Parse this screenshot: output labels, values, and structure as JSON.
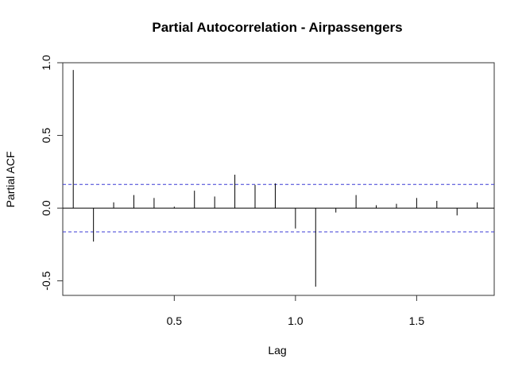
{
  "chart_data": {
    "type": "bar",
    "title": "Partial Autocorrelation - Airpassengers",
    "xlabel": "Lag",
    "ylabel": "Partial ACF",
    "xlim": [
      0.04,
      1.82
    ],
    "ylim": [
      -0.6,
      1.0
    ],
    "xticks": [
      "0.5",
      "1.0",
      "1.5"
    ],
    "xtick_values": [
      0.5,
      1.0,
      1.5
    ],
    "yticks": [
      "-0.5",
      "0.0",
      "0.5",
      "1.0"
    ],
    "ytick_values": [
      -0.5,
      0.0,
      0.5,
      1.0
    ],
    "confidence_band": [
      0.163,
      -0.163
    ],
    "confidence_color": "#3b3bd6",
    "bar_color": "#000000",
    "x": [
      0.0833,
      0.1667,
      0.25,
      0.3333,
      0.4167,
      0.5,
      0.5833,
      0.6667,
      0.75,
      0.8333,
      0.9167,
      1.0,
      1.0833,
      1.1667,
      1.25,
      1.3333,
      1.4167,
      1.5,
      1.5833,
      1.6667,
      1.75
    ],
    "values": [
      0.95,
      -0.23,
      0.04,
      0.09,
      0.07,
      0.01,
      0.12,
      0.08,
      0.23,
      0.16,
      0.17,
      -0.14,
      -0.54,
      -0.03,
      0.09,
      0.02,
      0.03,
      0.07,
      0.05,
      -0.05,
      0.04
    ]
  }
}
